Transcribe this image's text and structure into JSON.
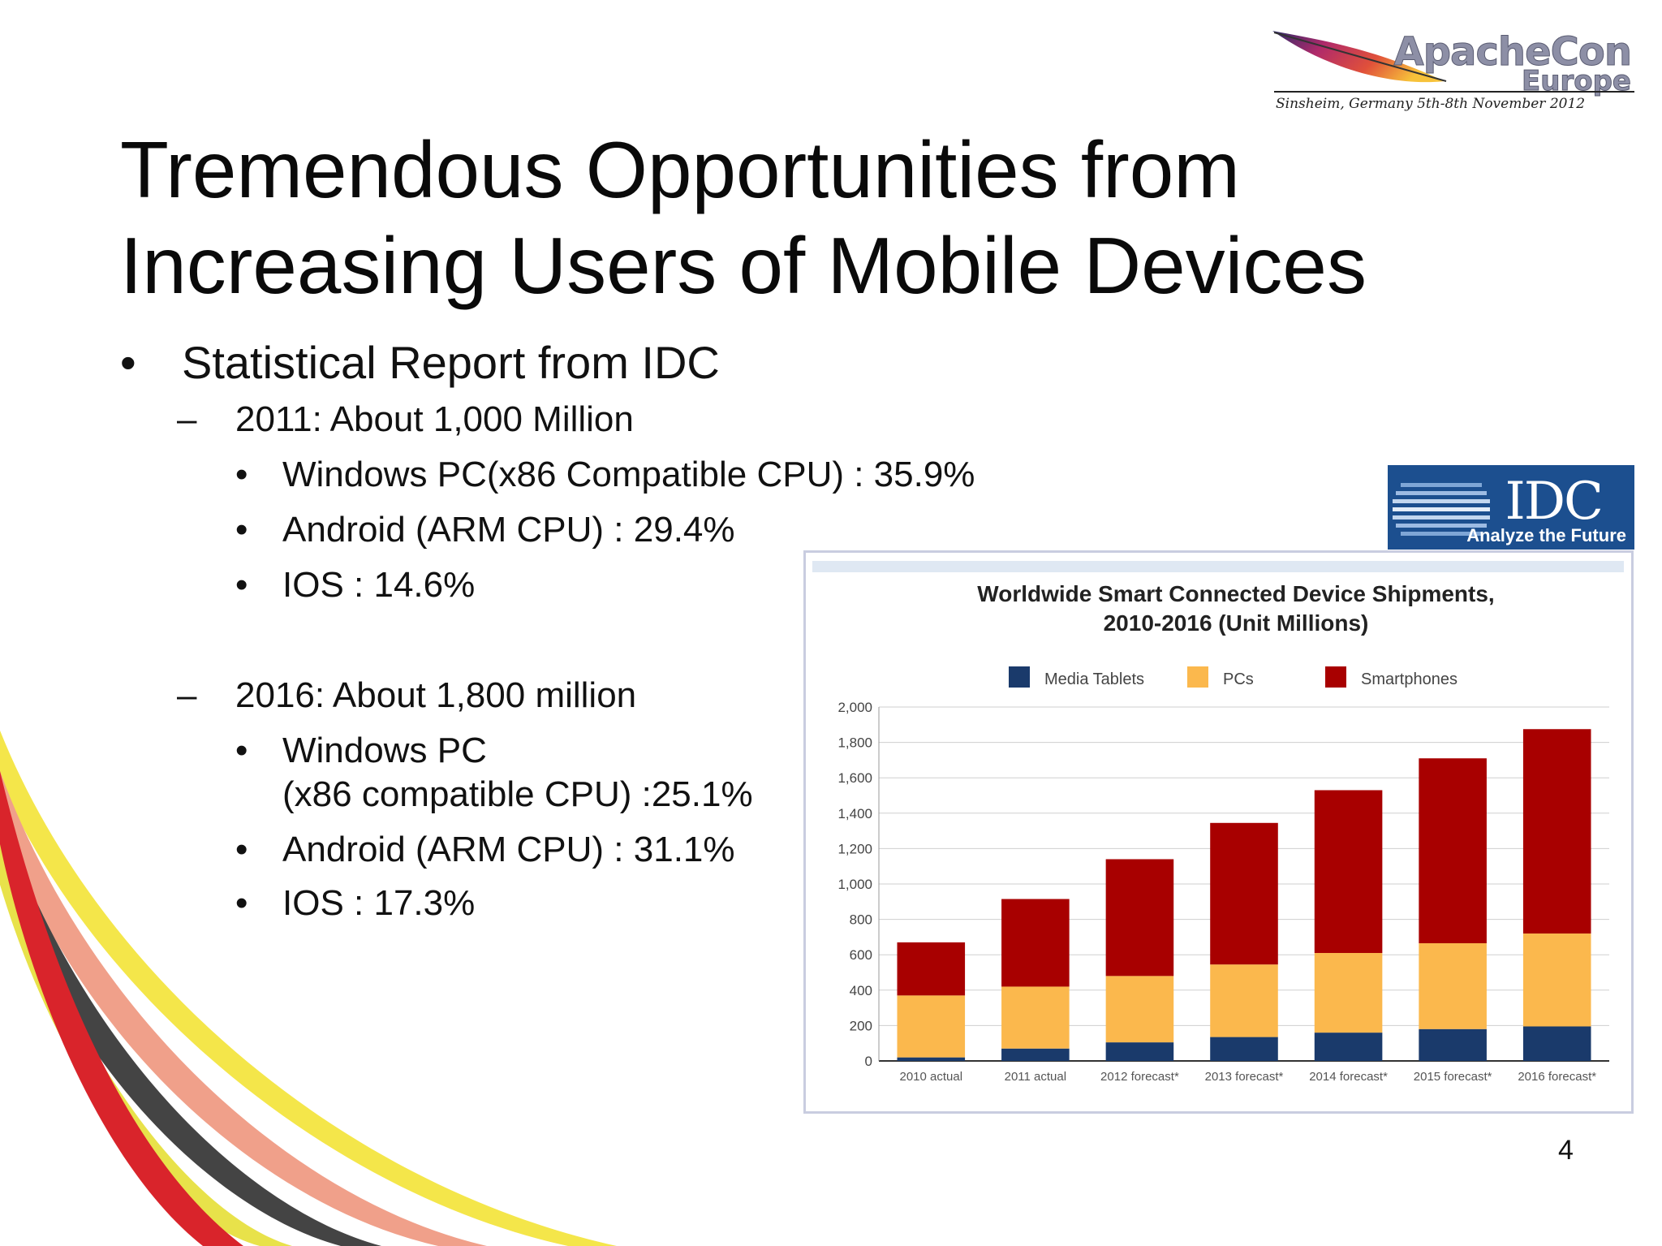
{
  "logo": {
    "line1": "ApacheCon",
    "line2": "Europe",
    "tagline": "Sinsheim, Germany 5th-8th November 2012"
  },
  "title": {
    "line1": "Tremendous Opportunities from",
    "line2": "Increasing Users of Mobile Devices"
  },
  "bullets": {
    "main": "Statistical Report from IDC",
    "y2011": {
      "label": "2011: About 1,000 Million",
      "items": [
        "Windows PC(x86 Compatible CPU) : 35.9%",
        "Android (ARM CPU) : 29.4%",
        "IOS : 14.6%"
      ]
    },
    "y2016": {
      "label": "2016: About 1,800 million",
      "items": [
        "Windows PC",
        "(x86 compatible CPU) :25.1%",
        "Android (ARM CPU) : 31.1%",
        "IOS : 17.3%"
      ]
    }
  },
  "idc_badge": {
    "name": "IDC",
    "tagline": "Analyze the Future"
  },
  "page_number": "4",
  "colors": {
    "media_tablets": "#1a3a6b",
    "pcs": "#fbb84d",
    "smartphones": "#a80000",
    "idc_blue": "#1c4f8f"
  },
  "chart_data": {
    "type": "bar",
    "stacked": true,
    "title": "Worldwide Smart Connected Device Shipments, 2010-2016 (Unit Millions)",
    "categories": [
      "2010 actual",
      "2011 actual",
      "2012 forecast*",
      "2013 forecast*",
      "2014 forecast*",
      "2015 forecast*",
      "2016 forecast*"
    ],
    "series": [
      {
        "name": "Media Tablets",
        "values": [
          20,
          70,
          105,
          135,
          160,
          180,
          195
        ]
      },
      {
        "name": "PCs",
        "values": [
          350,
          350,
          375,
          410,
          450,
          485,
          525
        ]
      },
      {
        "name": "Smartphones",
        "values": [
          300,
          495,
          660,
          800,
          920,
          1045,
          1155
        ]
      }
    ],
    "ylim": [
      0,
      2000
    ],
    "yticks": [
      "0",
      "200",
      "400",
      "600",
      "800",
      "1,000",
      "1,200",
      "1,400",
      "1,600",
      "1,800",
      "2,000"
    ],
    "grid": true,
    "legend": "top"
  }
}
